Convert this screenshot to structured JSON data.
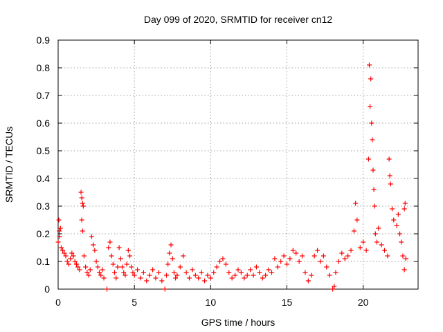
{
  "chart_data": {
    "type": "scatter",
    "title": "Day 099 of 2020, SRMTID for receiver cn12",
    "xlabel": "GPS time / hours",
    "ylabel": "SRMTID / TECUs",
    "xlim": [
      0,
      23.6
    ],
    "ylim": [
      0,
      0.9
    ],
    "xticks": [
      0,
      5,
      10,
      15,
      20
    ],
    "xtick_labels": [
      "0",
      "5",
      "10",
      "15",
      "20"
    ],
    "yticks": [
      0,
      0.1,
      0.2,
      0.3,
      0.4,
      0.5,
      0.6,
      0.7,
      0.8,
      0.9
    ],
    "ytick_labels": [
      "0",
      "0.1",
      "0.2",
      "0.3",
      "0.4",
      "0.5",
      "0.6",
      "0.7",
      "0.8",
      "0.9"
    ],
    "grid": true,
    "marker": "+",
    "series_color": "#ff0000",
    "series": [
      {
        "name": "SRMTID",
        "points": [
          [
            0.0,
            0.17
          ],
          [
            0.05,
            0.25
          ],
          [
            0.08,
            0.21
          ],
          [
            0.1,
            0.19
          ],
          [
            0.15,
            0.22
          ],
          [
            0.2,
            0.15
          ],
          [
            0.3,
            0.14
          ],
          [
            0.4,
            0.13
          ],
          [
            0.5,
            0.12
          ],
          [
            0.6,
            0.1
          ],
          [
            0.7,
            0.09
          ],
          [
            0.8,
            0.11
          ],
          [
            0.9,
            0.13
          ],
          [
            1.0,
            0.12
          ],
          [
            1.1,
            0.1
          ],
          [
            1.2,
            0.09
          ],
          [
            1.3,
            0.08
          ],
          [
            1.4,
            0.07
          ],
          [
            1.5,
            0.35
          ],
          [
            1.55,
            0.33
          ],
          [
            1.6,
            0.31
          ],
          [
            1.65,
            0.3
          ],
          [
            1.55,
            0.25
          ],
          [
            1.6,
            0.21
          ],
          [
            1.7,
            0.12
          ],
          [
            1.8,
            0.08
          ],
          [
            1.9,
            0.06
          ],
          [
            2.0,
            0.05
          ],
          [
            2.1,
            0.07
          ],
          [
            2.2,
            0.19
          ],
          [
            2.3,
            0.16
          ],
          [
            2.4,
            0.14
          ],
          [
            2.5,
            0.1
          ],
          [
            2.6,
            0.08
          ],
          [
            2.7,
            0.06
          ],
          [
            2.8,
            0.05
          ],
          [
            2.9,
            0.07
          ],
          [
            3.0,
            0.04
          ],
          [
            3.2,
            0.0
          ],
          [
            3.3,
            0.15
          ],
          [
            3.4,
            0.17
          ],
          [
            3.5,
            0.12
          ],
          [
            3.6,
            0.09
          ],
          [
            3.7,
            0.06
          ],
          [
            3.8,
            0.04
          ],
          [
            3.9,
            0.08
          ],
          [
            4.0,
            0.15
          ],
          [
            4.1,
            0.11
          ],
          [
            4.2,
            0.08
          ],
          [
            4.3,
            0.06
          ],
          [
            4.4,
            0.05
          ],
          [
            4.5,
            0.09
          ],
          [
            4.6,
            0.14
          ],
          [
            4.7,
            0.12
          ],
          [
            4.8,
            0.08
          ],
          [
            4.9,
            0.06
          ],
          [
            5.0,
            0.05
          ],
          [
            5.2,
            0.07
          ],
          [
            5.4,
            0.04
          ],
          [
            5.6,
            0.06
          ],
          [
            5.8,
            0.03
          ],
          [
            6.0,
            0.05
          ],
          [
            6.2,
            0.07
          ],
          [
            6.4,
            0.04
          ],
          [
            6.6,
            0.06
          ],
          [
            6.8,
            0.03
          ],
          [
            7.0,
            0.0
          ],
          [
            7.1,
            0.05
          ],
          [
            7.2,
            0.09
          ],
          [
            7.3,
            0.13
          ],
          [
            7.4,
            0.16
          ],
          [
            7.5,
            0.11
          ],
          [
            7.6,
            0.06
          ],
          [
            7.7,
            0.04
          ],
          [
            7.8,
            0.05
          ],
          [
            8.0,
            0.08
          ],
          [
            8.2,
            0.12
          ],
          [
            8.4,
            0.06
          ],
          [
            8.6,
            0.04
          ],
          [
            8.8,
            0.07
          ],
          [
            9.0,
            0.05
          ],
          [
            9.2,
            0.04
          ],
          [
            9.4,
            0.06
          ],
          [
            9.6,
            0.03
          ],
          [
            9.8,
            0.05
          ],
          [
            10.0,
            0.04
          ],
          [
            10.2,
            0.06
          ],
          [
            10.4,
            0.08
          ],
          [
            10.6,
            0.1
          ],
          [
            10.8,
            0.11
          ],
          [
            11.0,
            0.09
          ],
          [
            11.2,
            0.06
          ],
          [
            11.4,
            0.04
          ],
          [
            11.6,
            0.05
          ],
          [
            11.8,
            0.07
          ],
          [
            12.0,
            0.06
          ],
          [
            12.2,
            0.04
          ],
          [
            12.4,
            0.05
          ],
          [
            12.6,
            0.07
          ],
          [
            12.8,
            0.05
          ],
          [
            13.0,
            0.08
          ],
          [
            13.2,
            0.06
          ],
          [
            13.4,
            0.04
          ],
          [
            13.6,
            0.05
          ],
          [
            13.8,
            0.07
          ],
          [
            14.0,
            0.06
          ],
          [
            14.2,
            0.11
          ],
          [
            14.4,
            0.08
          ],
          [
            14.6,
            0.1
          ],
          [
            14.8,
            0.12
          ],
          [
            15.0,
            0.09
          ],
          [
            15.2,
            0.11
          ],
          [
            15.4,
            0.14
          ],
          [
            15.6,
            0.13
          ],
          [
            15.8,
            0.1
          ],
          [
            16.0,
            0.12
          ],
          [
            16.2,
            0.06
          ],
          [
            16.4,
            0.03
          ],
          [
            16.6,
            0.05
          ],
          [
            16.8,
            0.12
          ],
          [
            17.0,
            0.14
          ],
          [
            17.2,
            0.1
          ],
          [
            17.4,
            0.12
          ],
          [
            17.6,
            0.08
          ],
          [
            17.8,
            0.05
          ],
          [
            18.0,
            0.0
          ],
          [
            18.1,
            0.01
          ],
          [
            18.2,
            0.06
          ],
          [
            18.4,
            0.1
          ],
          [
            18.6,
            0.13
          ],
          [
            18.8,
            0.11
          ],
          [
            19.0,
            0.12
          ],
          [
            19.2,
            0.14
          ],
          [
            19.4,
            0.21
          ],
          [
            19.5,
            0.31
          ],
          [
            19.6,
            0.25
          ],
          [
            19.8,
            0.15
          ],
          [
            20.0,
            0.17
          ],
          [
            20.2,
            0.14
          ],
          [
            20.35,
            0.47
          ],
          [
            20.4,
            0.81
          ],
          [
            20.45,
            0.66
          ],
          [
            20.5,
            0.76
          ],
          [
            20.55,
            0.6
          ],
          [
            20.6,
            0.54
          ],
          [
            20.65,
            0.43
          ],
          [
            20.7,
            0.36
          ],
          [
            20.75,
            0.3
          ],
          [
            20.8,
            0.2
          ],
          [
            20.9,
            0.17
          ],
          [
            21.0,
            0.22
          ],
          [
            21.2,
            0.16
          ],
          [
            21.4,
            0.14
          ],
          [
            21.6,
            0.12
          ],
          [
            21.7,
            0.47
          ],
          [
            21.75,
            0.41
          ],
          [
            21.8,
            0.38
          ],
          [
            21.9,
            0.29
          ],
          [
            22.0,
            0.25
          ],
          [
            22.2,
            0.23
          ],
          [
            22.3,
            0.27
          ],
          [
            22.4,
            0.2
          ],
          [
            22.5,
            0.17
          ],
          [
            22.6,
            0.12
          ],
          [
            22.7,
            0.29
          ],
          [
            22.75,
            0.31
          ],
          [
            22.7,
            0.07
          ],
          [
            22.8,
            0.11
          ]
        ]
      }
    ]
  }
}
